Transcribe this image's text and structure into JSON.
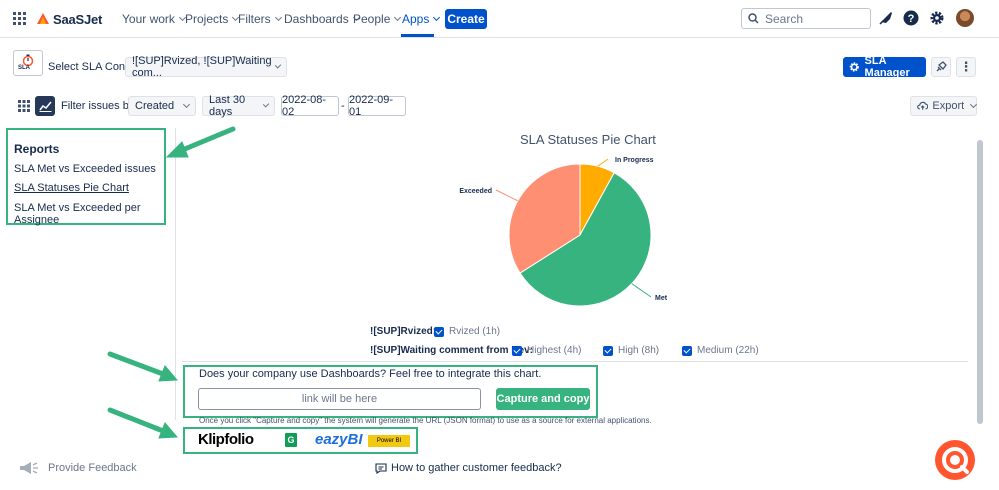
{
  "topnav": {
    "brand": "SaaSJet",
    "items": [
      {
        "label": "Your work",
        "dropdown": true
      },
      {
        "label": "Projects",
        "dropdown": true
      },
      {
        "label": "Filters",
        "dropdown": true
      },
      {
        "label": "Dashboards",
        "dropdown": true
      },
      {
        "label": "People",
        "dropdown": true
      },
      {
        "label": "Apps",
        "dropdown": true,
        "active": true
      }
    ],
    "create_label": "Create",
    "search_placeholder": "Search",
    "icons": [
      "notifications-icon",
      "help-icon",
      "settings-icon",
      "avatar"
    ]
  },
  "config": {
    "logo_text": "SLA",
    "select_label": "Select SLA Config",
    "select_value": "![SUP]Rvized, ![SUP]Waiting com...",
    "sla_manager_label": "SLA Manager",
    "more_label": "⋮"
  },
  "filter": {
    "label": "Filter issues by:",
    "field_value": "Created",
    "range_value": "Last 30 days",
    "date_from": "2022-08-02",
    "date_sep": "-",
    "date_to": "2022-09-01",
    "export_label": "Export"
  },
  "reports": {
    "title": "Reports",
    "items": [
      {
        "label": "SLA Met vs Exceeded issues",
        "active": false
      },
      {
        "label": "SLA Statuses Pie Chart",
        "active": true
      },
      {
        "label": "SLA Met vs Exceeded per Assignee",
        "active": false
      }
    ]
  },
  "chart_data": {
    "type": "pie",
    "title": "SLA Statuses Pie Chart",
    "slices": [
      {
        "label": "In Progress",
        "value": 8,
        "color": "#ffab00"
      },
      {
        "label": "Met",
        "value": 58,
        "color": "#36b37e"
      },
      {
        "label": "Exceeded",
        "value": 34,
        "color": "#ff8f73"
      }
    ],
    "legend": "none"
  },
  "sla_filters": {
    "rows": [
      {
        "label": "![SUP]Rvized:",
        "options": [
          {
            "label": "Rvized (1h)",
            "checked": true
          }
        ]
      },
      {
        "label": "![SUP]Waiting comment from Dev:",
        "options": [
          {
            "label": "Highest (4h)",
            "checked": true
          },
          {
            "label": "High (8h)",
            "checked": true
          },
          {
            "label": "Medium (22h)",
            "checked": true
          }
        ]
      }
    ]
  },
  "integration": {
    "question": "Does your company use Dashboards? Feel free to integrate this chart.",
    "link_placeholder": "link will be here",
    "capture_label": "Capture and copy",
    "note": "Once you click \"Capture and copy\" the system will generate the URL (JSON format) to use as a source for external applications.",
    "logos": [
      {
        "name": "Klipfolio",
        "text": "Klipfolio"
      },
      {
        "name": "Google Sheets",
        "text": "G"
      },
      {
        "name": "eazyBI",
        "text": "eazyBI"
      },
      {
        "name": "Power BI",
        "text": "Power BI"
      }
    ]
  },
  "footer": {
    "feedback_label": "Provide Feedback",
    "how_label": "How to gather customer feedback?"
  },
  "colors": {
    "brand": "#0052cc",
    "accent_green": "#36b37e",
    "arrow_green": "#36b37e"
  }
}
